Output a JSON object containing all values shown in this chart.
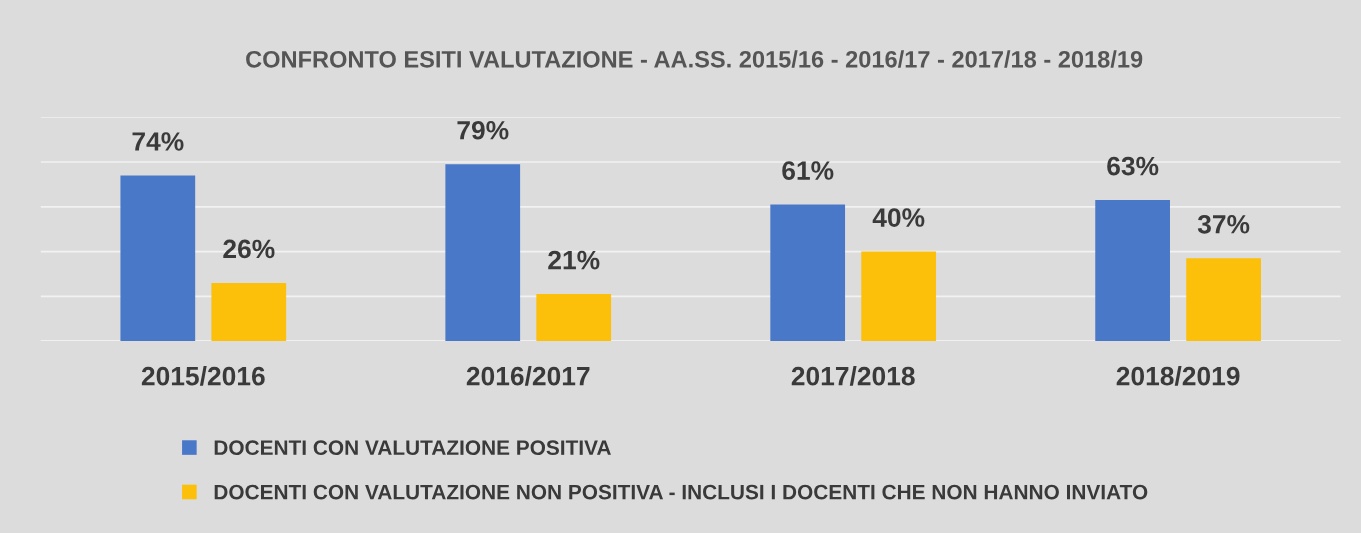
{
  "chart_data": {
    "type": "bar",
    "title": "CONFRONTO ESITI VALUTAZIONE - AA.SS. 2015/16 - 2016/17 - 2017/18 - 2018/19",
    "categories": [
      "2015/2016",
      "2016/2017",
      "2017/2018",
      "2018/2019"
    ],
    "series": [
      {
        "name": "DOCENTI CON VALUTAZIONE POSITIVA",
        "color": "#4a78c8",
        "values": [
          74,
          79,
          61,
          63
        ],
        "value_labels": [
          "74%",
          "79%",
          "61%",
          "63%"
        ]
      },
      {
        "name": "DOCENTI CON VALUTAZIONE NON POSITIVA - INCLUSI I DOCENTI CHE NON HANNO INVIATO",
        "color": "#fcbf0a",
        "values": [
          26,
          21,
          40,
          37
        ],
        "value_labels": [
          "26%",
          "21%",
          "40%",
          "37%"
        ]
      }
    ],
    "ylim": [
      0,
      100
    ],
    "yticks": [
      {
        "value": 0,
        "label": null
      },
      {
        "value": 20,
        "label": null
      },
      {
        "value": 40,
        "label": null
      },
      {
        "value": 60,
        "label": null
      },
      {
        "value": 80,
        "label": null
      },
      {
        "value": 100,
        "label": null
      }
    ],
    "tick_labels": "x",
    "grid": "y",
    "legend": "bottom"
  }
}
